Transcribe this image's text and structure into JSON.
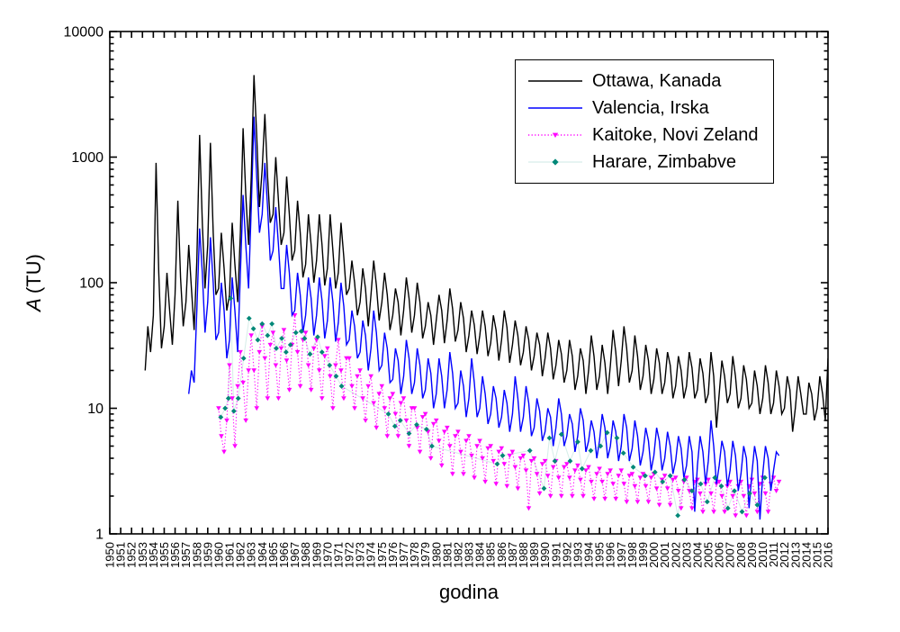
{
  "chart_data": {
    "type": "line",
    "title": "",
    "xlabel": "godina",
    "ylabel": "A (TU)",
    "ylabel_italic": "A",
    "ylabel_rest": "(TU)",
    "x_scale": "linear",
    "y_scale": "log",
    "xlim": [
      1950,
      2016
    ],
    "ylim": [
      1,
      10000
    ],
    "grid": false,
    "legend_position": "top-right-inside",
    "x_ticks": [
      1950,
      1951,
      1952,
      1953,
      1954,
      1955,
      1956,
      1957,
      1958,
      1959,
      1960,
      1961,
      1962,
      1963,
      1964,
      1965,
      1966,
      1967,
      1968,
      1969,
      1970,
      1971,
      1972,
      1973,
      1974,
      1975,
      1976,
      1977,
      1978,
      1979,
      1980,
      1981,
      1982,
      1983,
      1984,
      1985,
      1986,
      1987,
      1988,
      1989,
      1990,
      1991,
      1992,
      1993,
      1994,
      1995,
      1996,
      1997,
      1998,
      1999,
      2000,
      2001,
      2002,
      2003,
      2004,
      2005,
      2006,
      2007,
      2008,
      2009,
      2010,
      2011,
      2012,
      2013,
      2014,
      2015,
      2016
    ],
    "y_ticks": [
      1,
      10,
      100,
      1000,
      10000
    ],
    "y_tick_labels": [
      "1",
      "10",
      "100",
      "1000",
      "10000"
    ],
    "series": [
      {
        "name": "Ottawa, Kanada",
        "color": "#000000",
        "linestyle": "solid",
        "marker": "none",
        "start": 1953.25,
        "step": 0.25,
        "values": [
          20,
          45,
          28,
          55,
          900,
          120,
          30,
          45,
          120,
          60,
          32,
          80,
          450,
          110,
          45,
          70,
          200,
          90,
          42,
          150,
          1500,
          300,
          90,
          200,
          1300,
          250,
          80,
          90,
          250,
          130,
          60,
          80,
          300,
          140,
          70,
          250,
          1700,
          500,
          200,
          700,
          4500,
          1500,
          400,
          800,
          2200,
          700,
          300,
          350,
          1000,
          450,
          200,
          250,
          700,
          350,
          150,
          180,
          450,
          250,
          110,
          140,
          350,
          200,
          100,
          150,
          350,
          200,
          95,
          130,
          350,
          180,
          90,
          120,
          300,
          160,
          80,
          90,
          150,
          100,
          55,
          70,
          130,
          90,
          45,
          80,
          150,
          95,
          50,
          70,
          120,
          80,
          42,
          55,
          90,
          70,
          38,
          60,
          110,
          75,
          40,
          55,
          100,
          70,
          36,
          45,
          70,
          55,
          32,
          50,
          80,
          60,
          33,
          50,
          90,
          62,
          34,
          42,
          70,
          52,
          28,
          38,
          60,
          46,
          27,
          38,
          60,
          45,
          26,
          33,
          55,
          42,
          24,
          35,
          60,
          44,
          23,
          32,
          50,
          38,
          22,
          28,
          45,
          35,
          20,
          26,
          40,
          32,
          18,
          25,
          40,
          30,
          17,
          22,
          35,
          27,
          16,
          20,
          35,
          26,
          14,
          18,
          30,
          24,
          13,
          20,
          38,
          26,
          14,
          18,
          32,
          23,
          13,
          22,
          42,
          28,
          15,
          24,
          45,
          30,
          16,
          20,
          38,
          26,
          14,
          18,
          32,
          24,
          13,
          17,
          30,
          23,
          13,
          16,
          28,
          22,
          12,
          15,
          26,
          20,
          12,
          15,
          28,
          21,
          12,
          14,
          25,
          19,
          11,
          13,
          28,
          18,
          7,
          13,
          24,
          18,
          11,
          13,
          26,
          18,
          10,
          12,
          22,
          17,
          10,
          11,
          20,
          15,
          9,
          12,
          22,
          16,
          9,
          11,
          20,
          15,
          9,
          10,
          18,
          14,
          6.5,
          10,
          18,
          13,
          9,
          9,
          16,
          13,
          8,
          10,
          18,
          13,
          8,
          25,
          15,
          20,
          12
        ]
      },
      {
        "name": "Valencia, Irska",
        "color": "#0000ff",
        "linestyle": "solid",
        "marker": "none",
        "start": 1957.25,
        "step": 0.25,
        "values": [
          13,
          20,
          16,
          60,
          270,
          120,
          40,
          70,
          230,
          100,
          35,
          40,
          100,
          60,
          25,
          35,
          110,
          60,
          28,
          120,
          500,
          200,
          90,
          400,
          2100,
          700,
          250,
          350,
          900,
          400,
          150,
          180,
          400,
          200,
          90,
          90,
          200,
          120,
          55,
          60,
          120,
          80,
          40,
          55,
          110,
          75,
          38,
          55,
          110,
          72,
          36,
          50,
          110,
          70,
          34,
          48,
          100,
          65,
          32,
          35,
          60,
          45,
          25,
          28,
          50,
          38,
          20,
          30,
          60,
          40,
          20,
          22,
          40,
          30,
          16,
          17,
          30,
          24,
          13,
          18,
          35,
          25,
          13,
          16,
          30,
          22,
          12,
          14,
          25,
          19,
          10,
          13,
          25,
          18,
          10,
          14,
          28,
          19,
          10,
          11,
          20,
          15,
          8.5,
          12,
          25,
          16,
          8.5,
          10,
          18,
          13,
          7.5,
          9,
          15,
          12,
          7,
          8.5,
          14,
          11,
          6.5,
          9,
          18,
          12,
          6.5,
          8.5,
          15,
          11,
          6,
          7,
          12,
          9.5,
          5.5,
          6.5,
          10,
          8.5,
          5,
          7,
          12,
          9,
          5,
          6,
          9,
          7.5,
          4.5,
          6,
          10,
          8,
          4.5,
          5.5,
          8,
          6.5,
          4,
          5.5,
          9,
          7,
          4,
          5,
          8,
          6.5,
          3.8,
          5,
          9,
          7,
          3.8,
          4.8,
          8,
          6,
          3.5,
          4.5,
          7,
          5.5,
          3.2,
          4.2,
          7,
          5.5,
          3.2,
          4,
          6.5,
          5,
          3,
          3.8,
          6,
          4.8,
          2.8,
          3.5,
          6,
          4.5,
          1.5,
          3.5,
          6,
          4.5,
          2.5,
          3.8,
          8,
          5,
          2.5,
          3.5,
          5.5,
          4.5,
          2.4,
          3.2,
          5.5,
          4.2,
          2.2,
          3,
          5,
          4,
          1.6,
          3,
          5,
          3.8,
          1.3,
          3,
          5,
          4,
          2.2,
          3.2,
          4.5,
          4.2
        ]
      },
      {
        "name": "Kaitoke, Novi Zeland",
        "color": "#ff00ff",
        "linestyle": "dotted",
        "marker": "triangle-down",
        "start": 1960.0,
        "step": 0.25,
        "values": [
          10,
          6,
          4.5,
          8,
          22,
          12,
          5,
          15,
          28,
          16,
          8,
          20,
          38,
          20,
          10,
          28,
          45,
          25,
          12,
          32,
          40,
          22,
          12,
          30,
          42,
          24,
          14,
          32,
          55,
          28,
          15,
          35,
          40,
          22,
          14,
          30,
          35,
          20,
          12,
          26,
          30,
          18,
          10,
          22,
          35,
          20,
          12,
          25,
          25,
          15,
          10,
          18,
          20,
          12,
          8,
          15,
          18,
          11,
          7,
          13,
          15,
          10,
          6,
          12,
          13,
          9,
          6,
          11,
          12,
          8,
          5,
          10,
          10,
          7,
          4.5,
          8.5,
          9,
          6.5,
          4,
          7.5,
          8,
          5.5,
          3.5,
          6.5,
          7,
          5,
          3,
          6,
          6.5,
          4.5,
          3,
          5.5,
          6,
          4.2,
          2.8,
          5,
          5.5,
          4,
          2.6,
          4.8,
          5,
          3.8,
          2.5,
          4.5,
          4.8,
          3.6,
          2.4,
          4.2,
          4.5,
          3.4,
          2.3,
          4,
          4.2,
          3.2,
          1.6,
          3.8,
          4,
          3,
          2.1,
          3.6,
          3.8,
          2.9,
          2,
          3.4,
          3.8,
          2.8,
          2,
          3.4,
          3.6,
          2.8,
          2,
          3.2,
          3.5,
          2.7,
          2,
          3.2,
          3.4,
          2.6,
          1.9,
          3,
          3.3,
          2.6,
          1.9,
          3,
          3.2,
          2.5,
          1.9,
          2.9,
          3.2,
          2.5,
          1.8,
          2.9,
          3,
          2.4,
          1.8,
          2.8,
          3,
          2.4,
          1.8,
          2.8,
          3,
          2.3,
          1.7,
          2.7,
          2.9,
          2.3,
          1.7,
          2.7,
          2.8,
          2.2,
          1.6,
          2.6,
          2.8,
          2.2,
          1.6,
          2.6,
          2.7,
          2.1,
          1.5,
          2.5,
          2.7,
          2.1,
          1.5,
          2.5,
          2.6,
          2,
          1.5,
          2.4,
          2.6,
          2,
          1.4,
          2.4,
          2.6,
          2,
          1.4,
          2.4,
          2.7,
          2.1,
          1.5,
          2.5,
          2.8,
          2.1,
          1.5,
          2.5,
          2.8,
          2.2,
          2.6
        ]
      },
      {
        "name": "Harare, Zimbabve",
        "color": "#008878",
        "line_color": "#d8eeea",
        "linestyle": "solid",
        "marker": "diamond",
        "x": [
          1960.2,
          1960.6,
          1960.9,
          1961.1,
          1961.4,
          1961.8,
          1962.3,
          1962.8,
          1963.2,
          1963.6,
          1964.0,
          1964.5,
          1964.9,
          1965.3,
          1965.8,
          1966.2,
          1966.6,
          1967.1,
          1967.6,
          1967.9,
          1968.4,
          1969.1,
          1969.5,
          1970.2,
          1970.8,
          1971.3,
          1975.6,
          1976.2,
          1976.7,
          1977.5,
          1978.2,
          1979.1,
          1979.6,
          1985.6,
          1986.1,
          1988.6,
          1989.9,
          1990.4,
          1990.9,
          1991.5,
          1992.3,
          1993.0,
          1993.4,
          1994.2,
          1995.1,
          1995.7,
          1996.6,
          1997.2,
          1998.1,
          1999.2,
          2000.1,
          2000.8,
          2001.5,
          2002.2,
          2002.8,
          2003.5,
          2004.3,
          2004.9,
          2005.6,
          2006.2,
          2006.8,
          2007.4,
          2008.1,
          2008.8,
          2009.5,
          2010.2
        ],
        "y": [
          8.5,
          10,
          12,
          75,
          9.5,
          12,
          25,
          52,
          43,
          35,
          47,
          38,
          47,
          30,
          36,
          28,
          32,
          40,
          41,
          36,
          27,
          37,
          28,
          22,
          18,
          15,
          9,
          7.2,
          8,
          6.3,
          7.4,
          6.8,
          5,
          3.6,
          4.2,
          4.6,
          2.3,
          5.8,
          3.8,
          6.2,
          3.8,
          5.4,
          3.3,
          4.6,
          5,
          6.4,
          5.8,
          4.4,
          3.4,
          2.9,
          3.1,
          2.6,
          2.9,
          1.4,
          2.7,
          2.2,
          2.5,
          1.8,
          2.8,
          2.4,
          1.6,
          2.2,
          1.5,
          2.1,
          1.7,
          2.8
        ]
      }
    ]
  }
}
